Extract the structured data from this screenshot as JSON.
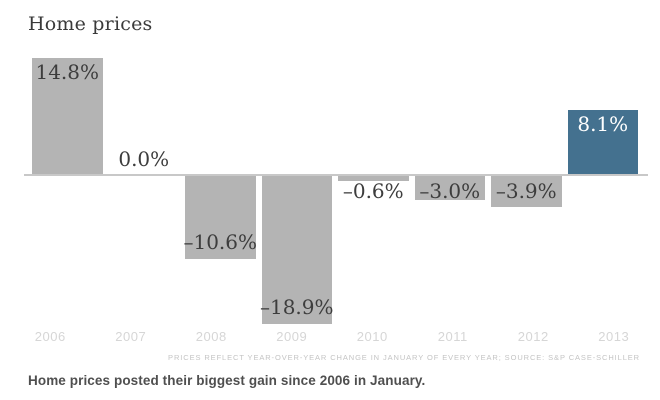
{
  "title": "Home prices",
  "chart_data": {
    "type": "bar",
    "title": "Home prices",
    "categories": [
      "2006",
      "2007",
      "2008",
      "2009",
      "2010",
      "2011",
      "2012",
      "2013"
    ],
    "values": [
      14.8,
      0.0,
      -10.6,
      -18.9,
      -0.6,
      -3.0,
      -3.9,
      8.1
    ],
    "value_labels": [
      "14.8%",
      "0.0%",
      "–10.6%",
      "–18.9%",
      "–0.6%",
      "–3.0%",
      "–3.9%",
      "8.1%"
    ],
    "unit": "%",
    "xlabel": "",
    "ylabel": "",
    "ylim": [
      -20,
      16
    ],
    "grid": false,
    "legend": "none",
    "zero_baseline": true,
    "highlight_index": 7,
    "label_placements": [
      "inside-top",
      "above-line",
      "inside-bottom",
      "inside-bottom",
      "below-line",
      "below-line",
      "below-line",
      "inside-top"
    ],
    "label_colors": [
      "dark",
      "dark",
      "dark",
      "dark",
      "dark",
      "dark",
      "dark",
      "white"
    ]
  },
  "colors": {
    "bar_default": "#b4b4b4",
    "bar_highlight": "#44718f",
    "baseline": "#c8c8c8",
    "value_text": "#3d3d3d",
    "value_text_highlight": "#ffffff",
    "year_text": "#d6d6d6",
    "footnote_text": "#c4c4c4",
    "caption_text": "#4f4f4f"
  },
  "footnote": "PRICES REFLECT YEAR-OVER-YEAR CHANGE IN JANUARY OF EVERY YEAR; SOURCE: S&P CASE-SCHILLER",
  "caption": "Home prices posted their biggest gain since 2006 in January."
}
